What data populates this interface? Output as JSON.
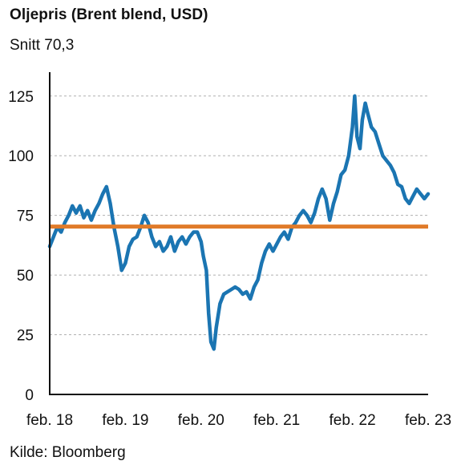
{
  "title": "Oljepris (Brent blend, USD)",
  "subtitle": "Snitt 70,3",
  "source": "Kilde: Bloomberg",
  "colors": {
    "series": "#1b75b2",
    "average": "#e07b2a",
    "grid": "#b0b0b0",
    "axis": "#111111"
  },
  "chart_data": {
    "type": "line",
    "title": "Oljepris (Brent blend, USD)",
    "subtitle": "Snitt 70,3",
    "xlabel": "",
    "ylabel": "",
    "ylim": [
      0,
      135
    ],
    "xlim": [
      2018.0,
      2023.0
    ],
    "yticks": [
      0,
      25,
      50,
      75,
      100,
      125
    ],
    "xticks": [
      {
        "x": 2018.0,
        "label": "feb. 18"
      },
      {
        "x": 2019.0,
        "label": "feb. 19"
      },
      {
        "x": 2020.0,
        "label": "feb. 20"
      },
      {
        "x": 2021.0,
        "label": "feb. 21"
      },
      {
        "x": 2022.0,
        "label": "feb. 22"
      },
      {
        "x": 2023.0,
        "label": "feb. 23"
      }
    ],
    "grid": "horizontal dashed",
    "average": {
      "label": "Snitt 70,3",
      "value": 70.3
    },
    "series": [
      {
        "x": [
          2018.0,
          2018.05,
          2018.1,
          2018.15,
          2018.2,
          2018.25,
          2018.3,
          2018.35,
          2018.4,
          2018.45,
          2018.5,
          2018.55,
          2018.6,
          2018.65,
          2018.7,
          2018.75,
          2018.8,
          2018.85,
          2018.9,
          2018.95,
          2019.0,
          2019.05,
          2019.1,
          2019.15,
          2019.2,
          2019.25,
          2019.3,
          2019.35,
          2019.4,
          2019.45,
          2019.5,
          2019.55,
          2019.6,
          2019.65,
          2019.7,
          2019.75,
          2019.8,
          2019.85,
          2019.9,
          2019.95,
          2020.0,
          2020.03,
          2020.07,
          2020.1,
          2020.13,
          2020.17,
          2020.2,
          2020.25,
          2020.3,
          2020.35,
          2020.4,
          2020.45,
          2020.5,
          2020.55,
          2020.6,
          2020.65,
          2020.7,
          2020.75,
          2020.8,
          2020.85,
          2020.9,
          2020.95,
          2021.0,
          2021.05,
          2021.1,
          2021.15,
          2021.2,
          2021.25,
          2021.3,
          2021.35,
          2021.4,
          2021.45,
          2021.5,
          2021.55,
          2021.6,
          2021.65,
          2021.7,
          2021.75,
          2021.8,
          2021.85,
          2021.9,
          2021.95,
          2022.0,
          2022.03,
          2022.06,
          2022.1,
          2022.13,
          2022.17,
          2022.2,
          2022.25,
          2022.3,
          2022.35,
          2022.4,
          2022.45,
          2022.5,
          2022.55,
          2022.6,
          2022.65,
          2022.7,
          2022.75,
          2022.8,
          2022.85,
          2022.9,
          2022.95,
          2023.0
        ],
        "y": [
          62,
          66,
          70,
          68,
          72,
          75,
          79,
          76,
          79,
          74,
          77,
          73,
          77,
          80,
          84,
          87,
          80,
          70,
          62,
          52,
          55,
          62,
          65,
          66,
          70,
          75,
          72,
          66,
          62,
          64,
          60,
          62,
          66,
          60,
          64,
          66,
          63,
          66,
          68,
          68,
          64,
          58,
          52,
          34,
          22,
          19,
          28,
          38,
          42,
          43,
          44,
          45,
          44,
          42,
          43,
          40,
          45,
          48,
          55,
          60,
          63,
          60,
          63,
          66,
          68,
          65,
          70,
          72,
          75,
          77,
          75,
          72,
          76,
          82,
          86,
          82,
          73,
          80,
          85,
          92,
          94,
          100,
          112,
          125,
          108,
          103,
          115,
          122,
          118,
          112,
          110,
          105,
          100,
          98,
          96,
          93,
          88,
          87,
          82,
          80,
          83,
          86,
          84,
          82,
          84
        ]
      }
    ]
  }
}
